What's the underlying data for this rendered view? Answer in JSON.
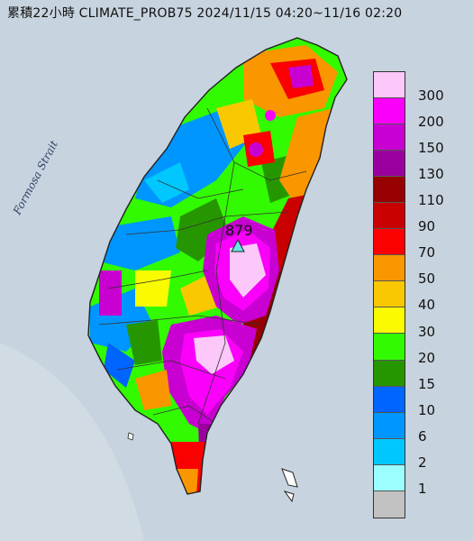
{
  "title": "累積22小時 CLIMATE_PROB75 2024/11/15 04:20~11/16 02:20",
  "sea_label": "Formosa Strait",
  "max_value": "879",
  "legend": [
    {
      "label": "300",
      "color": "#fcc8fa"
    },
    {
      "label": "200",
      "color": "#fa00fa"
    },
    {
      "label": "150",
      "color": "#c800d2"
    },
    {
      "label": "130",
      "color": "#9a009e"
    },
    {
      "label": "110",
      "color": "#960000"
    },
    {
      "label": "90",
      "color": "#c80000"
    },
    {
      "label": "70",
      "color": "#fa0000"
    },
    {
      "label": "50",
      "color": "#fa9600"
    },
    {
      "label": "40",
      "color": "#fac800"
    },
    {
      "label": "30",
      "color": "#fafa00"
    },
    {
      "label": "20",
      "color": "#32fa00"
    },
    {
      "label": "15",
      "color": "#269600"
    },
    {
      "label": "10",
      "color": "#0064ff"
    },
    {
      "label": "6",
      "color": "#0096ff"
    },
    {
      "label": "2",
      "color": "#00c8ff"
    },
    {
      "label": "1",
      "color": "#9bffff"
    },
    {
      "label": "",
      "color": "#c2c2c2"
    }
  ]
}
